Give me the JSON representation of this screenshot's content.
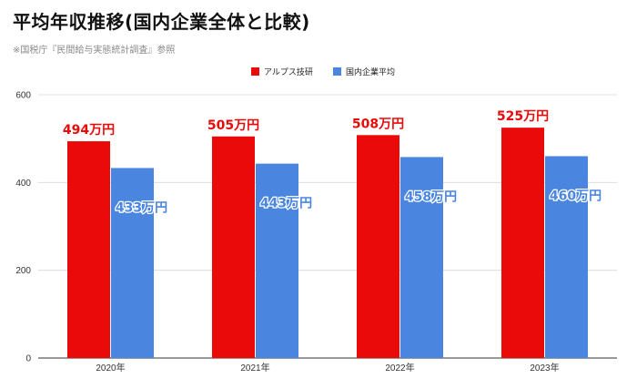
{
  "header": {
    "title": "平均年収推移(国内企業全体と比較)",
    "subtitle": "※国税庁『民間給与実態統計調査』参照"
  },
  "chart_data": {
    "type": "bar",
    "title": "平均年収推移(国内企業全体と比較)",
    "subtitle": "※国税庁『民間給与実態統計調査』参照",
    "xlabel": "",
    "ylabel": "",
    "categories": [
      "2020年",
      "2021年",
      "2022年",
      "2023年"
    ],
    "series": [
      {
        "name": "アルプス技研",
        "values": [
          494,
          505,
          508,
          525
        ],
        "color": "#ea0a0a",
        "labels": [
          "494万円",
          "505万円",
          "508万円",
          "525万円"
        ],
        "label_color": "#ea0a0a",
        "label_position": "above"
      },
      {
        "name": "国内企業平均",
        "values": [
          433,
          443,
          458,
          460
        ],
        "color": "#4a86e0",
        "labels": [
          "433万円",
          "443万円",
          "458万円",
          "460万円"
        ],
        "label_color": "#4a86e0",
        "label_position": "inside-top"
      }
    ],
    "ylim": [
      0,
      600
    ],
    "yticks": [
      0,
      200,
      400,
      600
    ],
    "grid": true,
    "legend": "top-center"
  }
}
